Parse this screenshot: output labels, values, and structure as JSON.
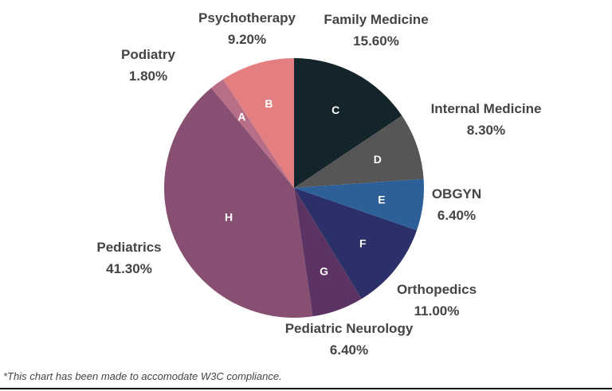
{
  "chart_data": {
    "type": "pie",
    "slices": [
      {
        "letter": "C",
        "name": "Family Medicine",
        "label": "15.60%",
        "value": 15.6,
        "color": "#13242a"
      },
      {
        "letter": "D",
        "name": "Internal Medicine",
        "label": "8.30%",
        "value": 8.3,
        "color": "#565656"
      },
      {
        "letter": "E",
        "name": "OBGYN",
        "label": "6.40%",
        "value": 6.4,
        "color": "#2d5f99"
      },
      {
        "letter": "F",
        "name": "Orthopedics",
        "label": "11.00%",
        "value": 11.0,
        "color": "#2c3068"
      },
      {
        "letter": "G",
        "name": "Pediatric Neurology",
        "label": "6.40%",
        "value": 6.4,
        "color": "#5b3464"
      },
      {
        "letter": "H",
        "name": "Pediatrics",
        "label": "41.30%",
        "value": 41.3,
        "color": "#874f72"
      },
      {
        "letter": "A",
        "name": "Podiatry",
        "label": "1.80%",
        "value": 1.8,
        "color": "#b76e86"
      },
      {
        "letter": "B",
        "name": "Psychotherapy",
        "label": "9.20%",
        "value": 9.2,
        "color": "#e37e81"
      }
    ]
  },
  "footnote": "*This chart has been made to accomodate W3C compliance."
}
